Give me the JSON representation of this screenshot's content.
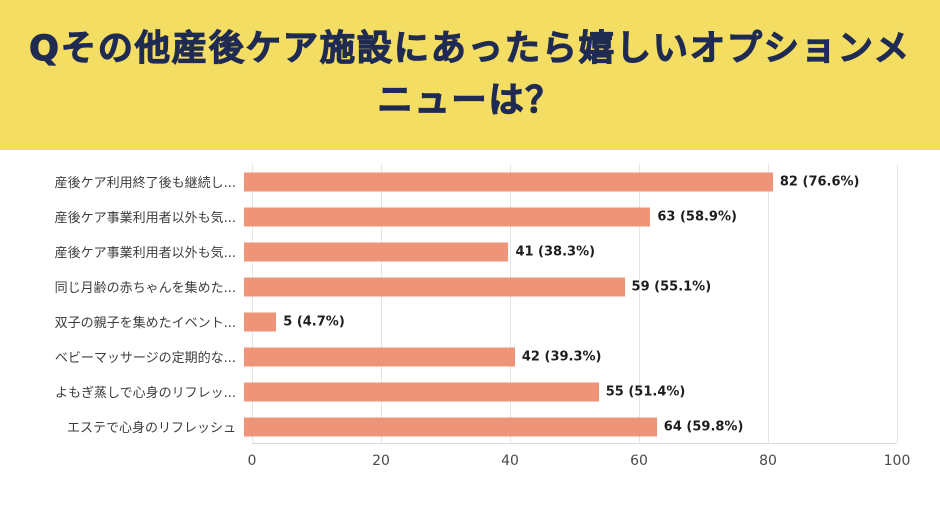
{
  "header": {
    "title": "Qその他産後ケア施設にあったら嬉しいオプションメニューは？"
  },
  "colors": {
    "header_bg": "#f3dd62",
    "title": "#1f2b52",
    "bar": "#ee9478",
    "grid": "#e4e4e4"
  },
  "chart_data": {
    "type": "bar",
    "orientation": "horizontal",
    "title": "Qその他産後ケア施設にあったら嬉しいオプションメニューは？",
    "categories": [
      "産後ケア利用終了後も継続し...",
      "産後ケア事業利用者以外も気...",
      "産後ケア事業利用者以外も気...",
      "同じ月齢の赤ちゃんを集めた...",
      "双子の親子を集めたイベント...",
      "ベビーマッサージの定期的な...",
      "よもぎ蒸しで心身のリフレッ...",
      "エステで心身のリフレッシュ"
    ],
    "values": [
      82,
      63,
      41,
      59,
      5,
      42,
      55,
      64
    ],
    "value_labels": [
      "82 (76.6%)",
      "63 (58.9%)",
      "41 (38.3%)",
      "59 (55.1%)",
      "5 (4.7%)",
      "42 (39.3%)",
      "55 (51.4%)",
      "64 (59.8%)"
    ],
    "xlim": [
      0,
      100
    ],
    "xticks": [
      0,
      20,
      40,
      60,
      80,
      100
    ],
    "xlabel": "",
    "ylabel": "",
    "grid": true,
    "legend": false,
    "bar_color": "#ee9478"
  }
}
